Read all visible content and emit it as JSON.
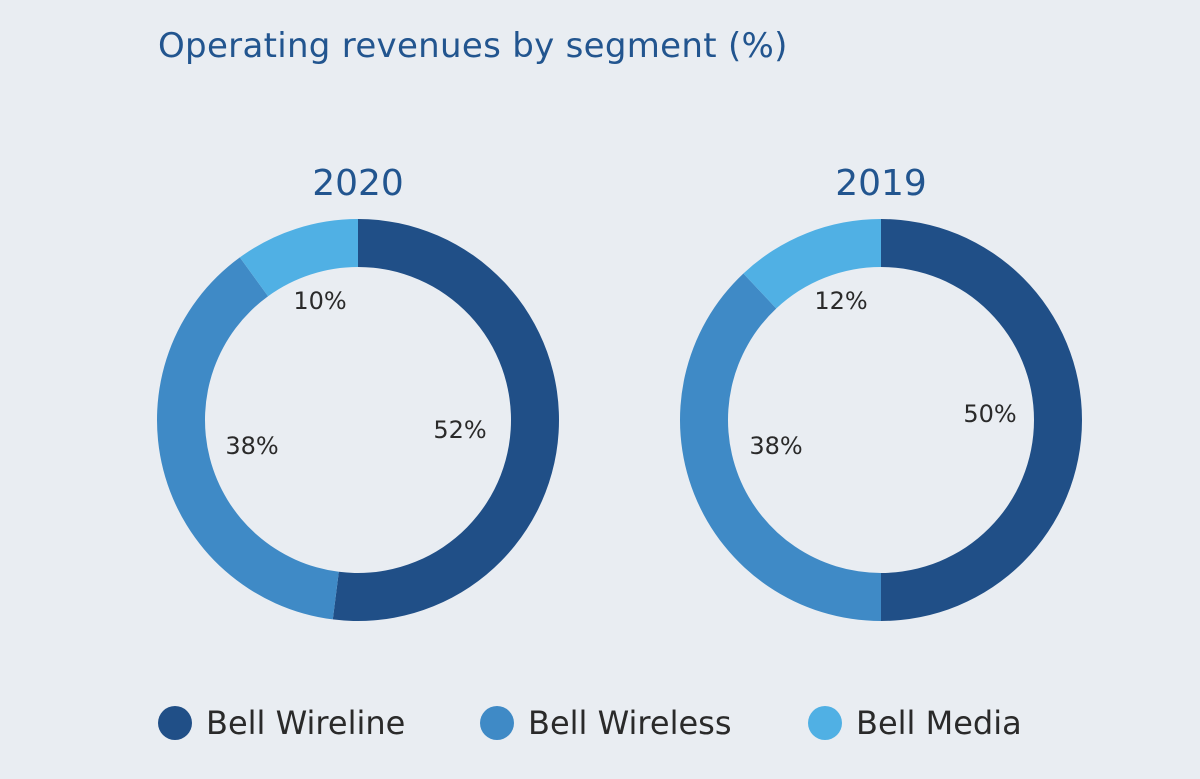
{
  "title": "Operating revenues by segment (%)",
  "colors": {
    "bell_wireline": "#204f87",
    "bell_wireless": "#3f8ac6",
    "bell_media": "#50b0e4"
  },
  "chart_data": [
    {
      "type": "pie",
      "variant": "donut",
      "title": "2020",
      "categories": [
        "Bell Wireline",
        "Bell Wireless",
        "Bell Media"
      ],
      "values": [
        52,
        38,
        10
      ],
      "labels": [
        "52%",
        "38%",
        "10%"
      ]
    },
    {
      "type": "pie",
      "variant": "donut",
      "title": "2019",
      "categories": [
        "Bell Wireline",
        "Bell Wireless",
        "Bell Media"
      ],
      "values": [
        50,
        38,
        12
      ],
      "labels": [
        "50%",
        "38%",
        "12%"
      ]
    }
  ],
  "legend": [
    {
      "label": "Bell Wireline",
      "color": "#204f87"
    },
    {
      "label": "Bell Wireless",
      "color": "#3f8ac6"
    },
    {
      "label": "Bell Media",
      "color": "#50b0e4"
    }
  ]
}
